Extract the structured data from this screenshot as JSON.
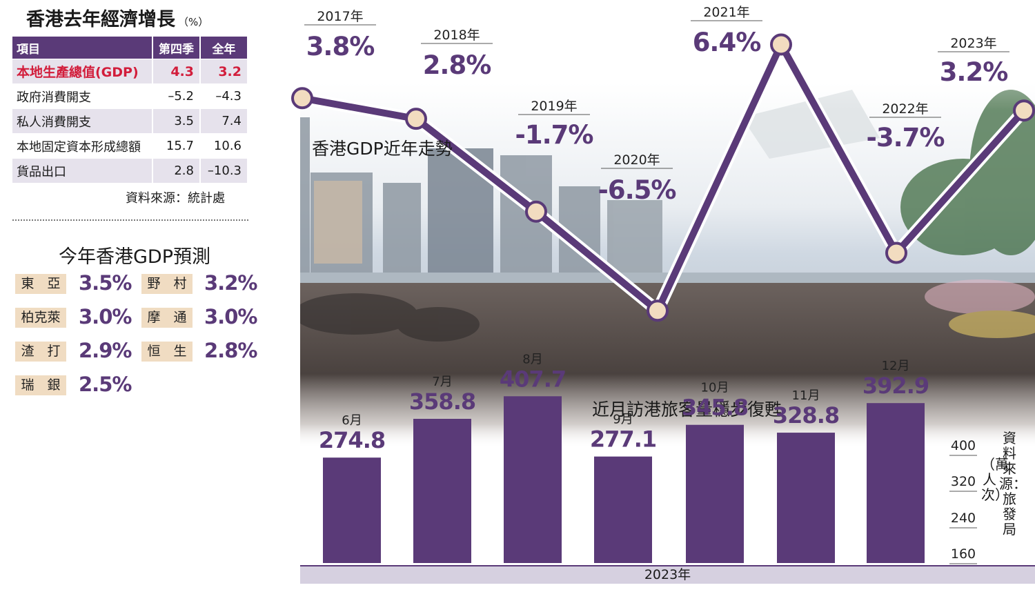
{
  "growth_table": {
    "title": "香港去年經濟增長",
    "unit": "（%）",
    "headers": [
      "項目",
      "第四季",
      "全年"
    ],
    "rows": [
      {
        "item": "本地生產總值(GDP)",
        "q4": "4.3",
        "year": "3.2"
      },
      {
        "item": "政府消費開支",
        "q4": "–5.2",
        "year": "–4.3"
      },
      {
        "item": "私人消費開支",
        "q4": "3.5",
        "year": "7.4"
      },
      {
        "item": "本地固定資本形成總額",
        "q4": "15.7",
        "year": "10.6"
      },
      {
        "item": "貨品出口",
        "q4": "2.8",
        "year": "–10.3"
      }
    ],
    "source": "資料來源：統計處"
  },
  "forecast": {
    "title": "今年香港GDP預測",
    "items": [
      {
        "name": "東　亞",
        "value": "3.5%"
      },
      {
        "name": "野　村",
        "value": "3.2%"
      },
      {
        "name": "柏克萊",
        "value": "3.0%"
      },
      {
        "name": "摩　通",
        "value": "3.0%"
      },
      {
        "name": "渣　打",
        "value": "2.9%"
      },
      {
        "name": "恒　生",
        "value": "2.8%"
      },
      {
        "name": "瑞　銀",
        "value": "2.5%"
      }
    ]
  },
  "chart_data": [
    {
      "type": "line",
      "title": "香港GDP近年走勢",
      "categories": [
        "2017年",
        "2018年",
        "2019年",
        "2020年",
        "2021年",
        "2022年",
        "2023年"
      ],
      "values": [
        3.8,
        2.8,
        -1.7,
        -6.5,
        6.4,
        -3.7,
        3.2
      ],
      "labels": [
        "3.8%",
        "2.8%",
        "-1.7%",
        "-6.5%",
        "6.4%",
        "-3.7%",
        "3.2%"
      ],
      "color": "#5a3a78",
      "marker_color": "#f2dcc0"
    },
    {
      "type": "bar",
      "title": "近月訪港旅客量穩步復甦",
      "categories": [
        "6月",
        "7月",
        "8月",
        "9月",
        "10月",
        "11月",
        "12月"
      ],
      "values": [
        274.8,
        358.8,
        407.7,
        277.1,
        345.8,
        328.8,
        392.9
      ],
      "labels": [
        "274.8",
        "358.8",
        "407.7",
        "277.1",
        "345.8",
        "328.8",
        "392.9"
      ],
      "yticks": [
        "400",
        "320",
        "240",
        "160"
      ],
      "ylim": [
        160,
        400
      ],
      "unit": "（萬人次）",
      "source": "資料來源：旅發局",
      "xlabel": "2023年",
      "color": "#5a3a78"
    }
  ]
}
